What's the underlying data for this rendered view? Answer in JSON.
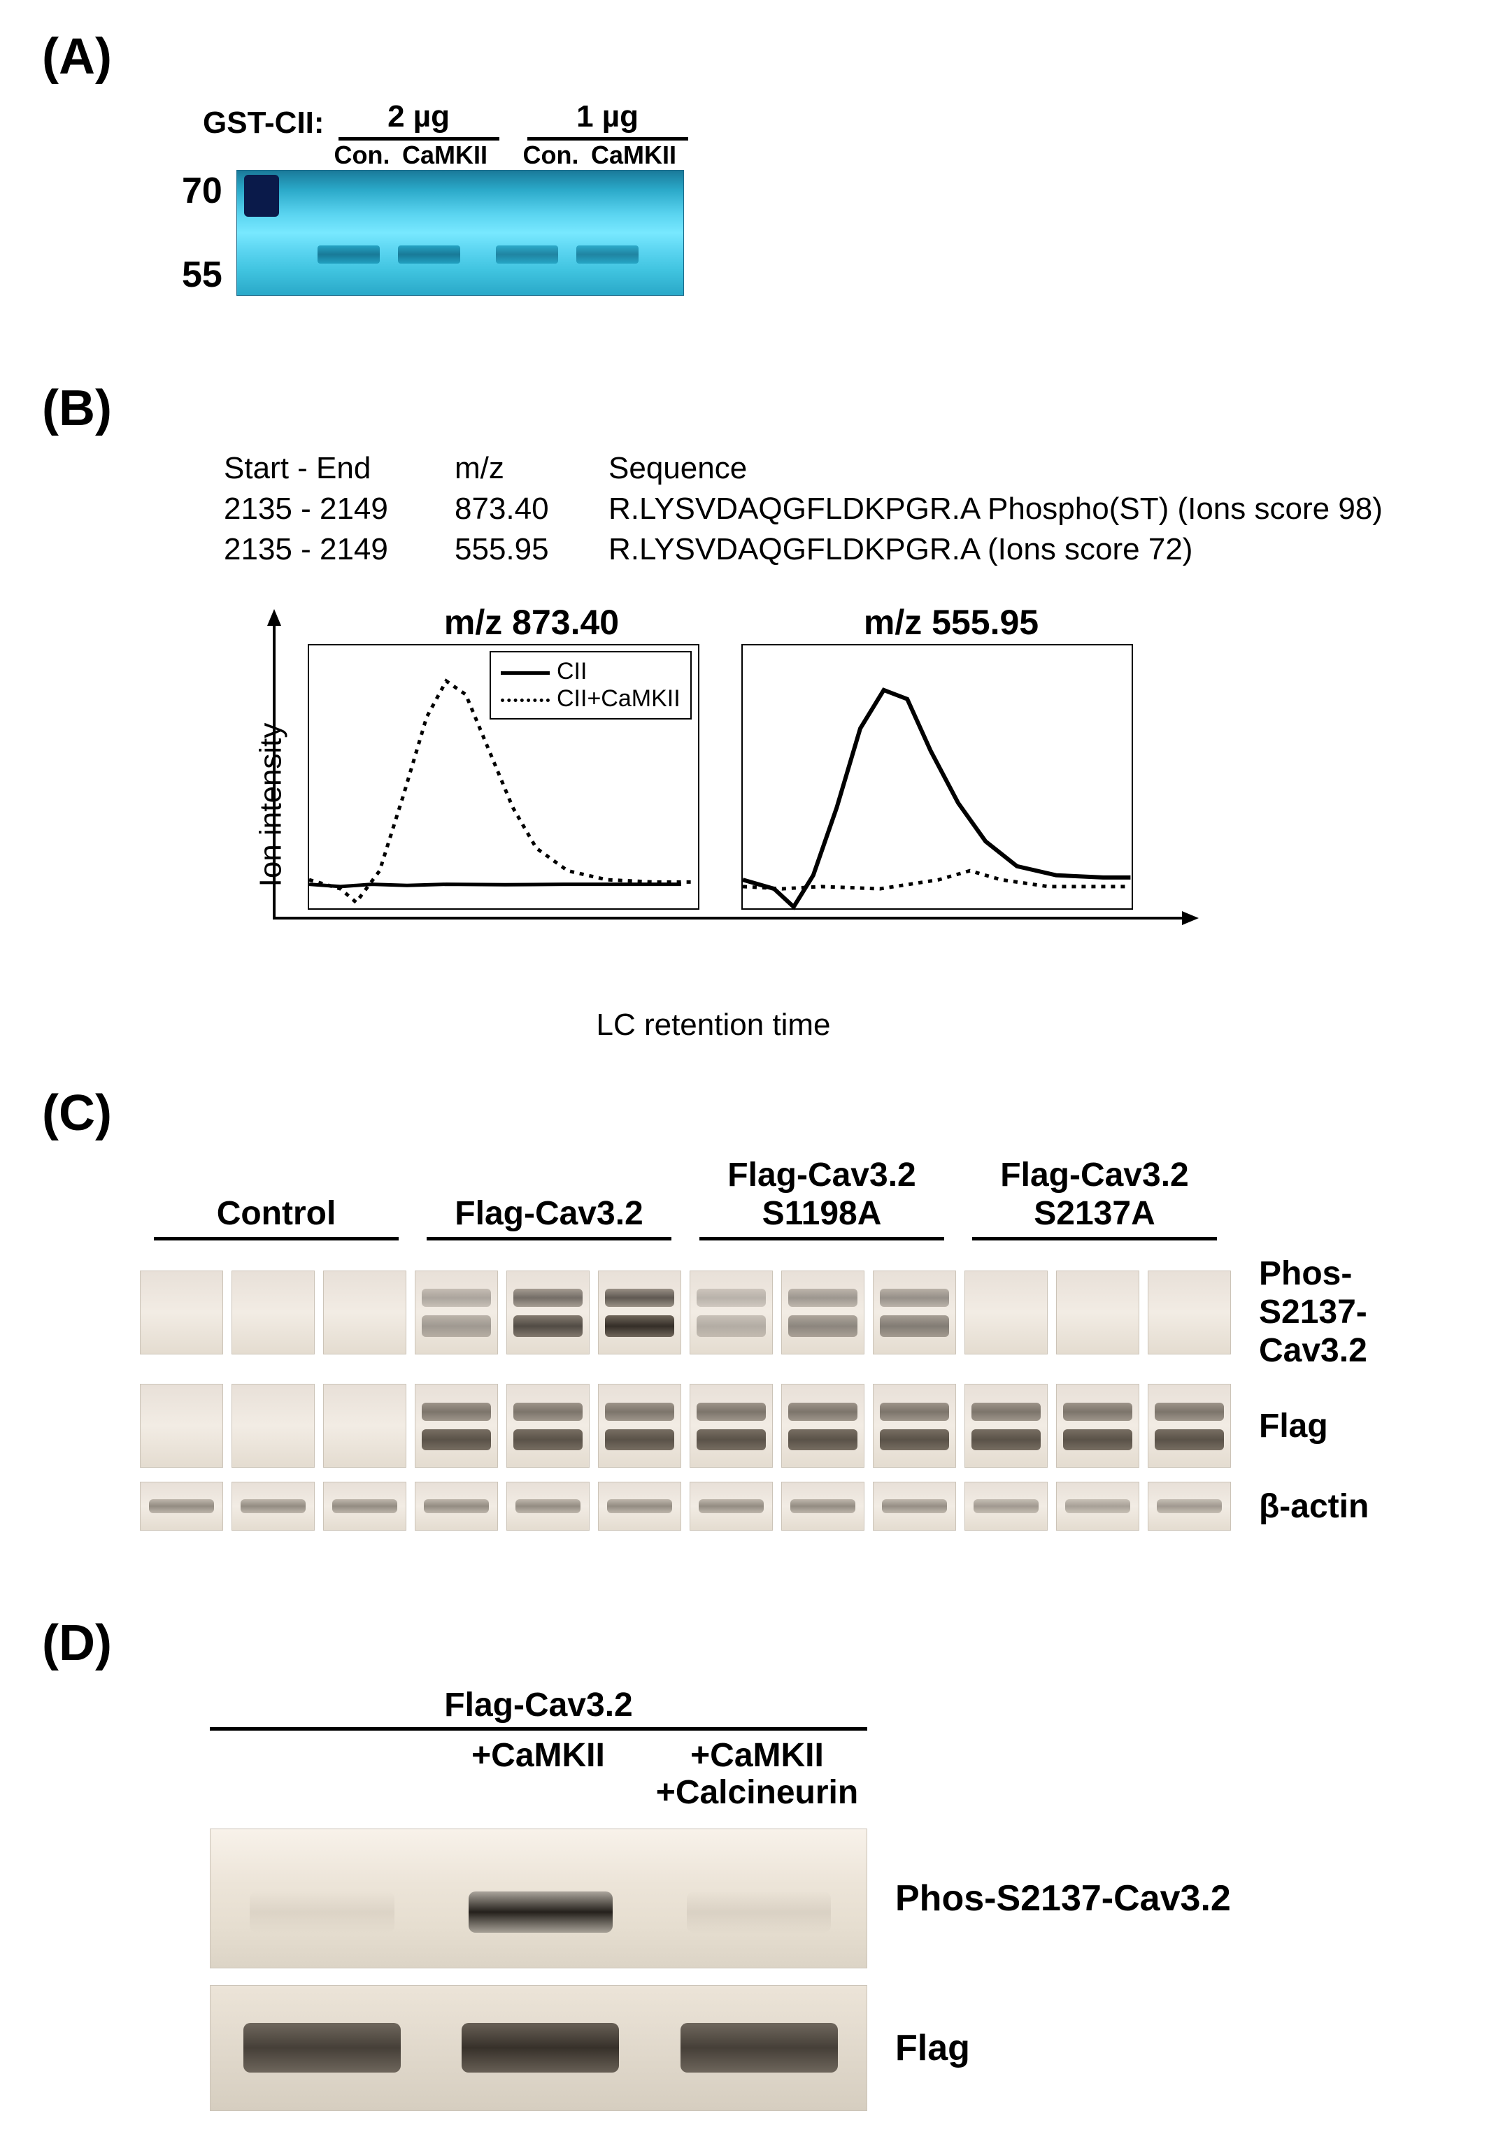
{
  "panelA": {
    "label": "(A)",
    "gst_label": "GST-CII:",
    "doses": [
      "2 µg",
      "1 µg"
    ],
    "lane_labels": [
      "Con.",
      "CaMKII",
      "Con.",
      "CaMKII"
    ],
    "mw_markers": [
      "70",
      "55"
    ],
    "gel": {
      "background_gradient": [
        "#1a7a9a",
        "#78e8ff"
      ],
      "bands": [
        {
          "left_pct": 18,
          "width_pct": 14,
          "top_pct": 60,
          "intensity": 0.85
        },
        {
          "left_pct": 36,
          "width_pct": 14,
          "top_pct": 60,
          "intensity": 0.85
        },
        {
          "left_pct": 58,
          "width_pct": 14,
          "top_pct": 60,
          "intensity": 0.75
        },
        {
          "left_pct": 76,
          "width_pct": 14,
          "top_pct": 60,
          "intensity": 0.75
        }
      ]
    }
  },
  "panelB": {
    "label": "(B)",
    "table": {
      "headers": {
        "startend": "Start - End",
        "mz": "m/z",
        "sequence": "Sequence"
      },
      "rows": [
        {
          "startend": "2135 - 2149",
          "mz": "873.40",
          "sequence": "R.LYSVDAQGFLDKPGR.A  Phospho(ST) (Ions score 98)"
        },
        {
          "startend": "2135 - 2149",
          "mz": "555.95",
          "sequence": "R.LYSVDAQGFLDKPGR.A  (Ions score 72)"
        }
      ]
    },
    "charts": {
      "y_label": "Ion intensity",
      "x_label": "LC retention time",
      "left": {
        "title": "m/z 873.40",
        "legend": [
          {
            "style": "solid",
            "label": "CII"
          },
          {
            "style": "dashed",
            "label": "CII+CaMKII"
          }
        ],
        "series": [
          {
            "name": "CII",
            "style": "solid",
            "color": "#000000",
            "stroke_width": 5,
            "points": [
              [
                0,
                0.06
              ],
              [
                0.08,
                0.05
              ],
              [
                0.16,
                0.06
              ],
              [
                0.25,
                0.055
              ],
              [
                0.35,
                0.06
              ],
              [
                0.5,
                0.058
              ],
              [
                0.65,
                0.06
              ],
              [
                0.8,
                0.06
              ],
              [
                0.95,
                0.06
              ]
            ]
          },
          {
            "name": "CII+CaMKII",
            "style": "dashed",
            "color": "#000000",
            "stroke_width": 5,
            "points": [
              [
                0,
                0.08
              ],
              [
                0.08,
                0.04
              ],
              [
                0.12,
                -0.02
              ],
              [
                0.18,
                0.12
              ],
              [
                0.24,
                0.45
              ],
              [
                0.3,
                0.8
              ],
              [
                0.35,
                0.96
              ],
              [
                0.4,
                0.9
              ],
              [
                0.46,
                0.65
              ],
              [
                0.52,
                0.4
              ],
              [
                0.58,
                0.22
              ],
              [
                0.66,
                0.12
              ],
              [
                0.76,
                0.08
              ],
              [
                0.88,
                0.07
              ],
              [
                0.98,
                0.07
              ]
            ]
          }
        ]
      },
      "right": {
        "title": "m/z 555.95",
        "series": [
          {
            "name": "CII",
            "style": "solid",
            "color": "#000000",
            "stroke_width": 6,
            "points": [
              [
                0,
                0.08
              ],
              [
                0.08,
                0.04
              ],
              [
                0.13,
                -0.04
              ],
              [
                0.18,
                0.1
              ],
              [
                0.24,
                0.4
              ],
              [
                0.3,
                0.75
              ],
              [
                0.36,
                0.92
              ],
              [
                0.42,
                0.88
              ],
              [
                0.48,
                0.65
              ],
              [
                0.55,
                0.42
              ],
              [
                0.62,
                0.25
              ],
              [
                0.7,
                0.14
              ],
              [
                0.8,
                0.1
              ],
              [
                0.92,
                0.09
              ],
              [
                0.99,
                0.09
              ]
            ]
          },
          {
            "name": "CII+CaMKII",
            "style": "dashed",
            "color": "#000000",
            "stroke_width": 5,
            "points": [
              [
                0,
                0.05
              ],
              [
                0.1,
                0.04
              ],
              [
                0.2,
                0.05
              ],
              [
                0.35,
                0.04
              ],
              [
                0.5,
                0.08
              ],
              [
                0.58,
                0.12
              ],
              [
                0.66,
                0.08
              ],
              [
                0.78,
                0.05
              ],
              [
                0.92,
                0.05
              ],
              [
                0.99,
                0.05
              ]
            ]
          }
        ]
      },
      "box_style": {
        "border_color": "#000000",
        "border_width": 2,
        "background": "#ffffff"
      }
    }
  },
  "panelC": {
    "label": "(C)",
    "groups": [
      "Control",
      "Flag-Cav3.2",
      "Flag-Cav3.2\nS1198A",
      "Flag-Cav3.2\nS2137A"
    ],
    "row_labels": [
      "Phos-S2137-Cav3.2",
      "Flag",
      "β-actin"
    ],
    "lanes_per_group": 3,
    "blots": {
      "phos": {
        "band_color": "#2a241e",
        "intensities": [
          [
            0,
            0,
            0
          ],
          [
            0.35,
            0.75,
            0.9
          ],
          [
            0.25,
            0.45,
            0.5
          ],
          [
            0,
            0,
            0
          ]
        ],
        "double_band": true
      },
      "flag": {
        "band_color": "#4a4238",
        "intensities": [
          [
            0,
            0,
            0
          ],
          [
            0.85,
            0.85,
            0.85
          ],
          [
            0.85,
            0.85,
            0.85
          ],
          [
            0.85,
            0.85,
            0.85
          ]
        ],
        "double_band": true
      },
      "actin": {
        "band_color": "#6a6258",
        "intensities": [
          [
            0.7,
            0.7,
            0.7
          ],
          [
            0.7,
            0.7,
            0.7
          ],
          [
            0.7,
            0.7,
            0.68
          ],
          [
            0.6,
            0.55,
            0.6
          ]
        ],
        "double_band": false
      }
    }
  },
  "panelD": {
    "label": "(D)",
    "title": "Flag-Cav3.2",
    "conditions": [
      "",
      "+CaMKII",
      "+CaMKII\n+Calcineurin"
    ],
    "row_labels": [
      "Phos-S2137-Cav3.2",
      "Flag"
    ],
    "blots": {
      "phos": {
        "lanes": [
          {
            "intensity": 0.05,
            "color": "#9a8e82"
          },
          {
            "intensity": 0.95,
            "color": "#1a1612"
          },
          {
            "intensity": 0.1,
            "color": "#8a7e72"
          }
        ]
      },
      "flag": {
        "lanes": [
          {
            "intensity": 0.85,
            "color": "#2a241e"
          },
          {
            "intensity": 0.9,
            "color": "#241e18"
          },
          {
            "intensity": 0.85,
            "color": "#2a241e"
          }
        ]
      }
    }
  }
}
